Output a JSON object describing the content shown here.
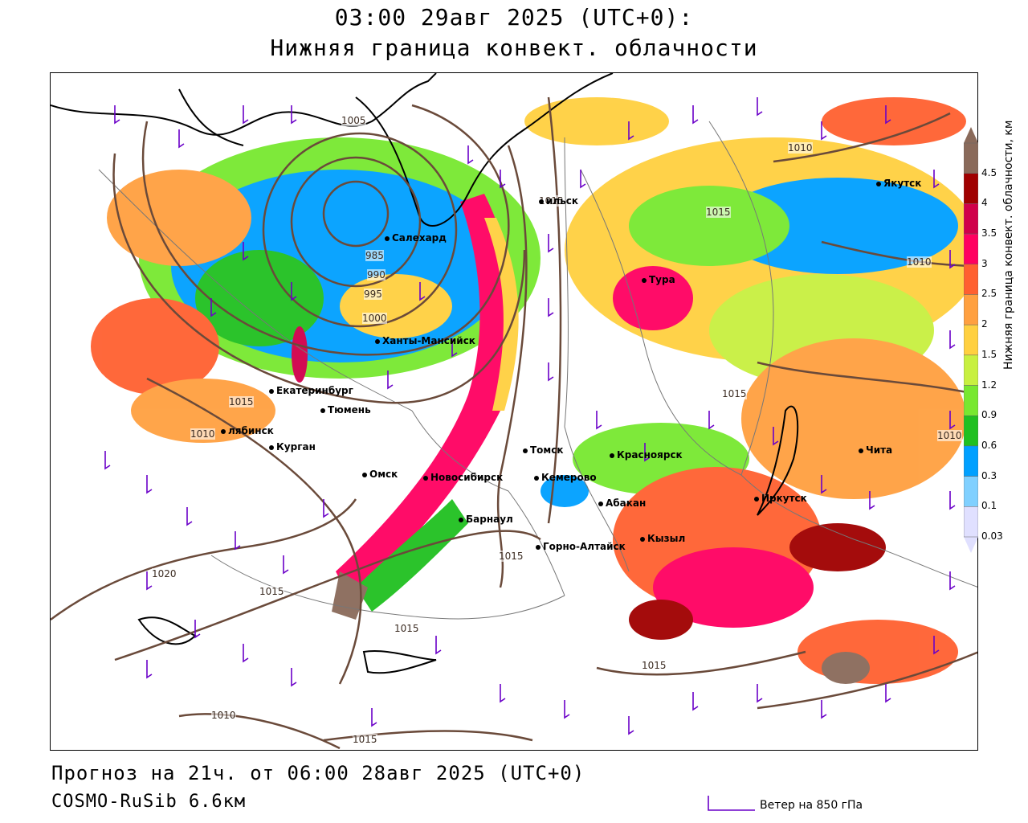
{
  "title": {
    "line1": "03:00 29авг 2025 (UTC+0):",
    "line2": "Нижняя граница конвект. облачности"
  },
  "footer": {
    "forecast": "Прогноз на 21ч. от 06:00 28авг 2025 (UTC+0)",
    "model": "COSMO-RuSib 6.6км"
  },
  "wind_legend": {
    "label": "Ветер на 850 гПа",
    "color": "#6a00c8"
  },
  "legend": {
    "title": "Нижняя граница конвект. облачности, км",
    "ticks": [
      "4.5",
      "4",
      "3.5",
      "3",
      "2.5",
      "2",
      "1.5",
      "1.2",
      "0.9",
      "0.6",
      "0.3",
      "0.1",
      "0.03"
    ],
    "colors": [
      "#8a6a5a",
      "#a00000",
      "#d0004a",
      "#ff0060",
      "#ff6030",
      "#ffa040",
      "#ffd040",
      "#c8f040",
      "#78e830",
      "#20c020",
      "#00a0ff",
      "#80d0ff",
      "#e0e0ff"
    ]
  },
  "cities": [
    {
      "name": "Якутск",
      "id": "yakutsk"
    },
    {
      "name": "ильск",
      "id": "norilsk"
    },
    {
      "name": "Салехард",
      "id": "salekhard"
    },
    {
      "name": "Тура",
      "id": "tura"
    },
    {
      "name": "Ханты-Мансийск",
      "id": "khanty"
    },
    {
      "name": "Екатеринбург",
      "id": "ekaterinburg"
    },
    {
      "name": "Тюмень",
      "id": "tyumen"
    },
    {
      "name": "лябинск",
      "id": "chelyabinsk"
    },
    {
      "name": "Курган",
      "id": "kurgan"
    },
    {
      "name": "Омск",
      "id": "omsk"
    },
    {
      "name": "Новосибирск",
      "id": "novosibirsk"
    },
    {
      "name": "Томск",
      "id": "tomsk"
    },
    {
      "name": "Кемерово",
      "id": "kemerovo"
    },
    {
      "name": "Красноярск",
      "id": "krasnoyarsk"
    },
    {
      "name": "Барнаул",
      "id": "barnaul"
    },
    {
      "name": "Абакан",
      "id": "abakan"
    },
    {
      "name": "Горно-Алтайск",
      "id": "gorno"
    },
    {
      "name": "Кызыл",
      "id": "kyzyl"
    },
    {
      "name": "Иркутск",
      "id": "irkutsk"
    },
    {
      "name": "Чита",
      "id": "chita"
    }
  ],
  "isobars": [
    "1010",
    "1015",
    "1010",
    "1005",
    "1000",
    "995",
    "990",
    "985",
    "1015",
    "1015",
    "1010",
    "1020",
    "1015",
    "1015",
    "1015",
    "1010",
    "1015",
    "1015",
    "1010",
    "1015"
  ]
}
